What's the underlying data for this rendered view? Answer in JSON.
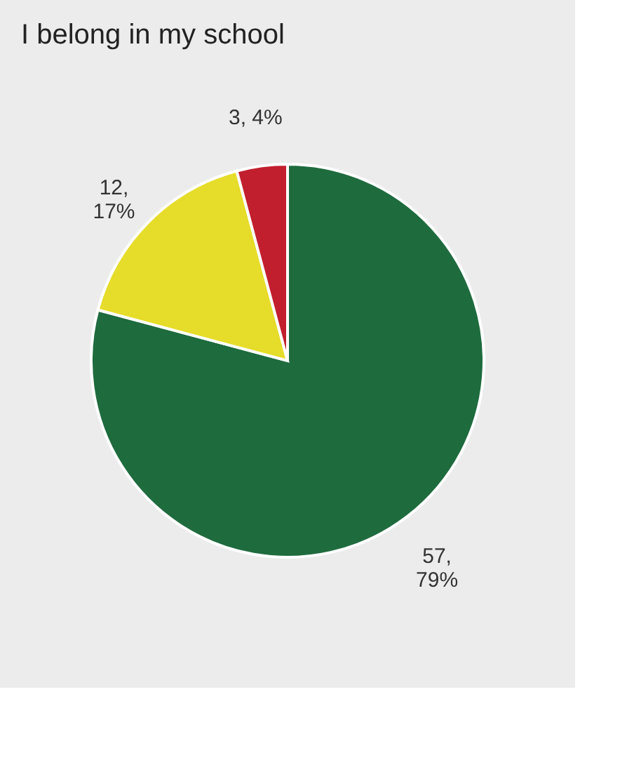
{
  "chart_data": {
    "type": "pie",
    "title": "I belong in my school",
    "categories": [
      null,
      null,
      null
    ],
    "values": [
      57,
      12,
      3
    ],
    "colors": [
      "#1e6b3e",
      "#e6dc2a",
      "#c21f2e"
    ],
    "value_labels": [
      "57,\n79%",
      "12,\n17%",
      "3, 4%"
    ]
  }
}
